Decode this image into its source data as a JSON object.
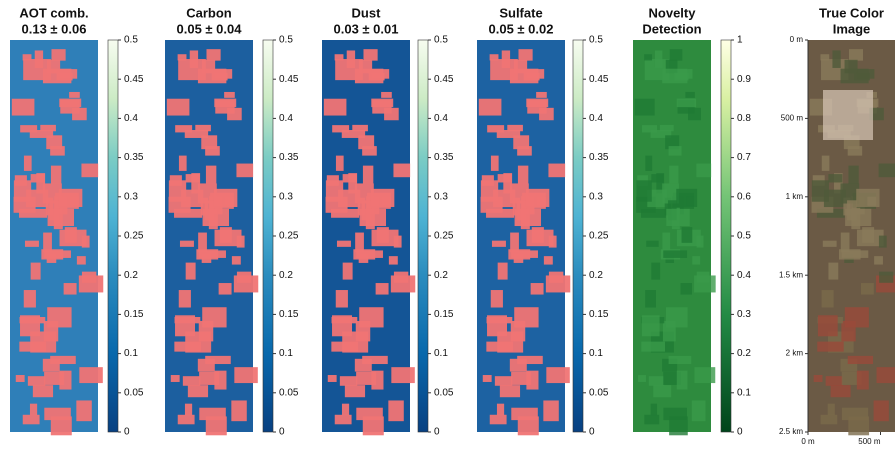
{
  "panels": [
    {
      "title": "AOT comb.",
      "subtitle": "0.13 ± 0.06",
      "colorbar": {
        "lim": [
          0,
          0.5
        ],
        "ticks": [
          0,
          0.05,
          0.1,
          0.15,
          0.2,
          0.25,
          0.3,
          0.35,
          0.4,
          0.45,
          0.5
        ]
      }
    },
    {
      "title": "Carbon",
      "subtitle": "0.05 ± 0.04",
      "colorbar": {
        "lim": [
          0,
          0.5
        ],
        "ticks": [
          0,
          0.05,
          0.1,
          0.15,
          0.2,
          0.25,
          0.3,
          0.35,
          0.4,
          0.45,
          0.5
        ]
      }
    },
    {
      "title": "Dust",
      "subtitle": "0.03 ± 0.01",
      "colorbar": {
        "lim": [
          0,
          0.5
        ],
        "ticks": [
          0,
          0.05,
          0.1,
          0.15,
          0.2,
          0.25,
          0.3,
          0.35,
          0.4,
          0.45,
          0.5
        ]
      }
    },
    {
      "title": "Sulfate",
      "subtitle": "0.05 ± 0.02",
      "colorbar": {
        "lim": [
          0,
          0.5
        ],
        "ticks": [
          0,
          0.05,
          0.1,
          0.15,
          0.2,
          0.25,
          0.3,
          0.35,
          0.4,
          0.45,
          0.5
        ]
      }
    },
    {
      "title": "Novelty",
      "subtitle": "Detection",
      "colorbar": {
        "lim": [
          0,
          1
        ],
        "ticks": [
          0,
          0.1,
          0.2,
          0.3,
          0.4,
          0.5,
          0.6,
          0.7,
          0.8,
          0.9,
          1
        ]
      }
    },
    {
      "title": "True Color",
      "subtitle": "Image",
      "yaxis": {
        "lim": [
          0,
          2500
        ],
        "ticks": [
          {
            "value": 0,
            "label": "0 m"
          },
          {
            "value": 500,
            "label": "500 m"
          },
          {
            "value": 1000,
            "label": "1 km"
          },
          {
            "value": 1500,
            "label": "1.5 km"
          },
          {
            "value": 2000,
            "label": "2 km"
          },
          {
            "value": 2500,
            "label": "2.5 km"
          }
        ]
      },
      "xaxis": {
        "lim": [
          0,
          600
        ],
        "ticks": [
          {
            "value": 0,
            "label": "0 m"
          },
          {
            "value": 500,
            "label": "500 m"
          }
        ]
      }
    }
  ]
}
